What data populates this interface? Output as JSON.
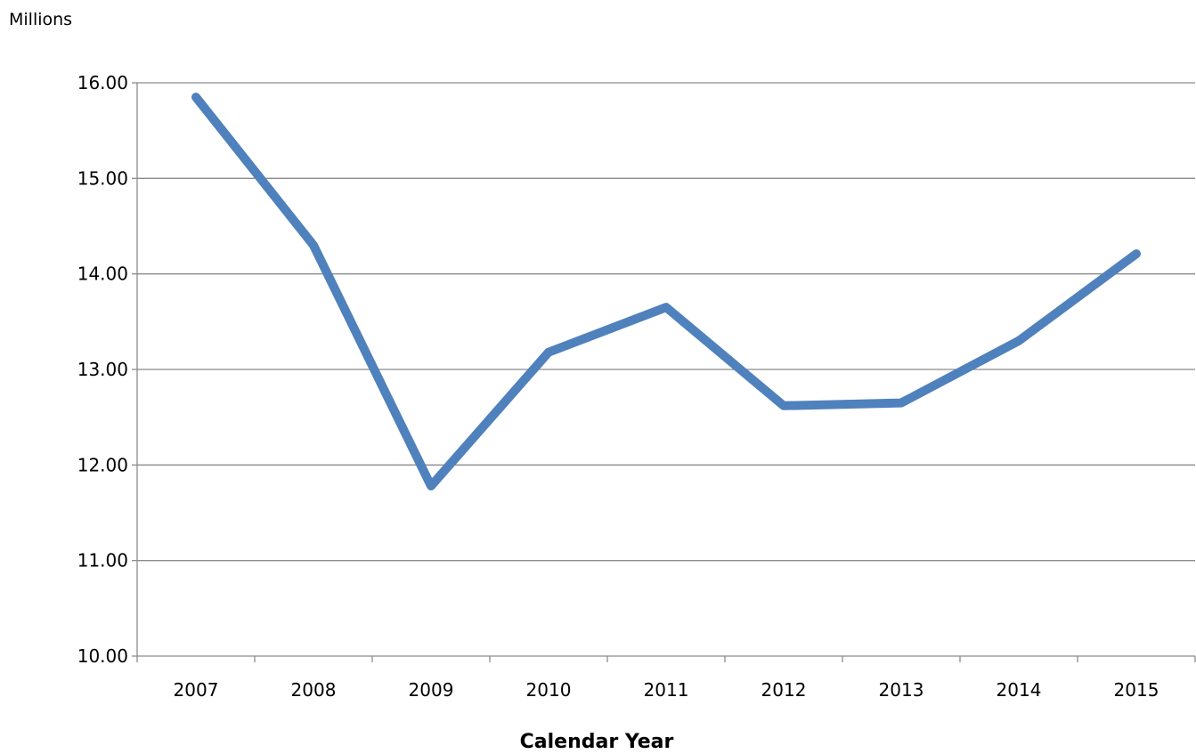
{
  "chart_data": {
    "type": "line",
    "title": "",
    "unit_label": "Millions",
    "xlabel": "Calendar Year",
    "ylabel": "",
    "categories": [
      "2007",
      "2008",
      "2009",
      "2010",
      "2011",
      "2012",
      "2013",
      "2014",
      "2015"
    ],
    "series": [
      {
        "values": [
          15.85,
          14.3,
          11.78,
          13.18,
          13.65,
          12.62,
          12.65,
          13.3,
          14.21
        ],
        "color": "#4f81bd"
      }
    ],
    "ylim": [
      10,
      16
    ],
    "y_ticks": [
      "10.00",
      "11.00",
      "12.00",
      "13.00",
      "14.00",
      "15.00",
      "16.00"
    ],
    "grid": "horizontal",
    "legend": "none"
  }
}
